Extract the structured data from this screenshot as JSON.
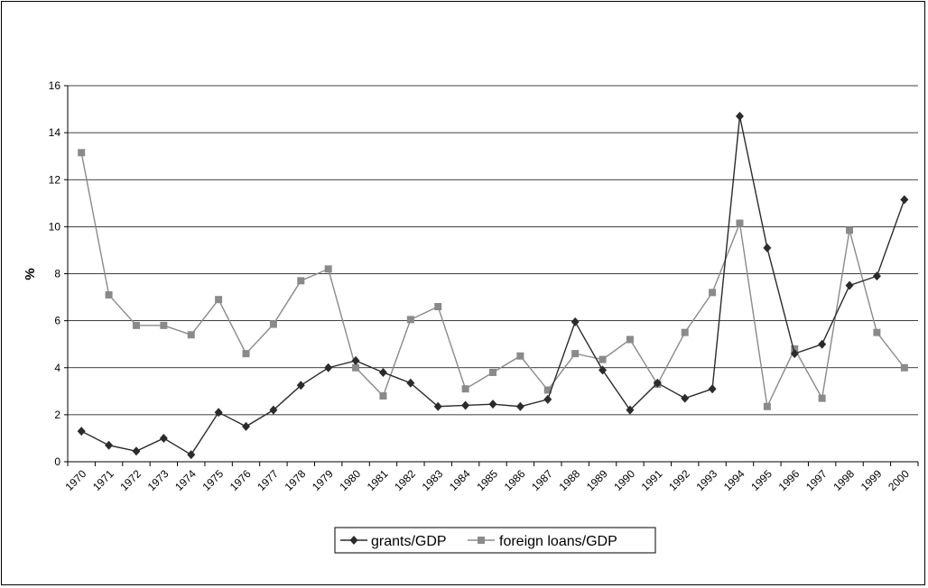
{
  "chart_data": {
    "type": "line",
    "title": "",
    "xlabel": "",
    "ylabel": "%",
    "ylim": [
      0,
      16
    ],
    "yticks": [
      0,
      2,
      4,
      6,
      8,
      10,
      12,
      14,
      16
    ],
    "grid": true,
    "legend_position": "bottom",
    "categories": [
      "1970",
      "1971",
      "1972",
      "1973",
      "1974",
      "1975",
      "1976",
      "1977",
      "1978",
      "1979",
      "1980",
      "1981",
      "1982",
      "1983",
      "1984",
      "1985",
      "1986",
      "1987",
      "1988",
      "1989",
      "1990",
      "1991",
      "1992",
      "1993",
      "1994",
      "1995",
      "1996",
      "1997",
      "1998",
      "1999",
      "2000"
    ],
    "series": [
      {
        "name": "grants/GDP",
        "color": "#2b2b2b",
        "marker": "diamond",
        "values": [
          1.3,
          0.7,
          0.45,
          1.0,
          0.3,
          2.1,
          1.5,
          2.2,
          3.25,
          4.0,
          4.3,
          3.8,
          3.35,
          2.35,
          2.4,
          2.45,
          2.35,
          2.65,
          5.95,
          3.9,
          2.2,
          3.35,
          2.7,
          3.1,
          14.7,
          9.1,
          4.6,
          5.0,
          7.5,
          7.9,
          11.15
        ]
      },
      {
        "name": "foreign loans/GDP",
        "color": "#8a8a8a",
        "marker": "square",
        "values": [
          13.15,
          7.1,
          5.8,
          5.8,
          5.4,
          6.9,
          4.6,
          5.85,
          7.7,
          8.2,
          4.0,
          2.8,
          6.05,
          6.6,
          3.1,
          3.8,
          4.5,
          3.05,
          4.6,
          4.35,
          5.2,
          3.3,
          5.5,
          7.2,
          10.15,
          2.35,
          4.8,
          2.7,
          9.85,
          5.5,
          4.0
        ]
      }
    ]
  }
}
